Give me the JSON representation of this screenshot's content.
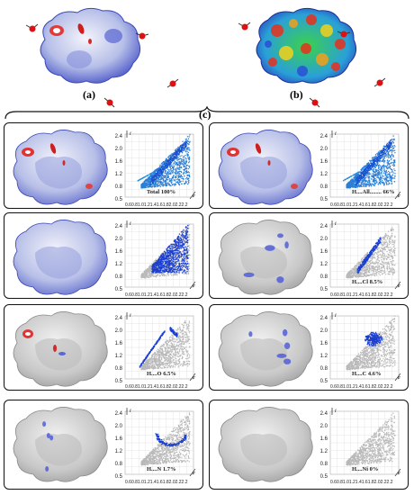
{
  "labels": {
    "a": "(a)",
    "b": "(b)",
    "c": "(c)"
  },
  "plot_axis": {
    "y_ticks": [
      "2.4",
      "2.0",
      "1.6",
      "1.2",
      "0.8",
      "0.5"
    ],
    "x_ticks_text": "0.60.81.01.21.41.61.82.02.22.2"
  },
  "panels": [
    {
      "name": "total",
      "contribution": "Total 100%",
      "surface_style": "full",
      "plot_style": "full"
    },
    {
      "name": "h-all",
      "contribution": "H....All........ 66%",
      "surface_style": "full",
      "plot_style": "full"
    },
    {
      "name": "h-h",
      "contribution": "",
      "surface_style": "blue",
      "plot_style": "dense"
    },
    {
      "name": "h-cl",
      "contribution": "H....Cl 8.5%",
      "surface_style": "grey-some",
      "plot_style": "wing"
    },
    {
      "name": "h-o",
      "contribution": "H....O 6.5%",
      "surface_style": "grey-red",
      "plot_style": "spike"
    },
    {
      "name": "h-c",
      "contribution": "H....C 4.6%",
      "surface_style": "grey-some",
      "plot_style": "blob"
    },
    {
      "name": "h-n",
      "contribution": "H....N 1.7%",
      "surface_style": "grey-few",
      "plot_style": "arc"
    },
    {
      "name": "h-ni",
      "contribution": "H....Ni 0%",
      "surface_style": "grey",
      "plot_style": "grey"
    }
  ]
}
